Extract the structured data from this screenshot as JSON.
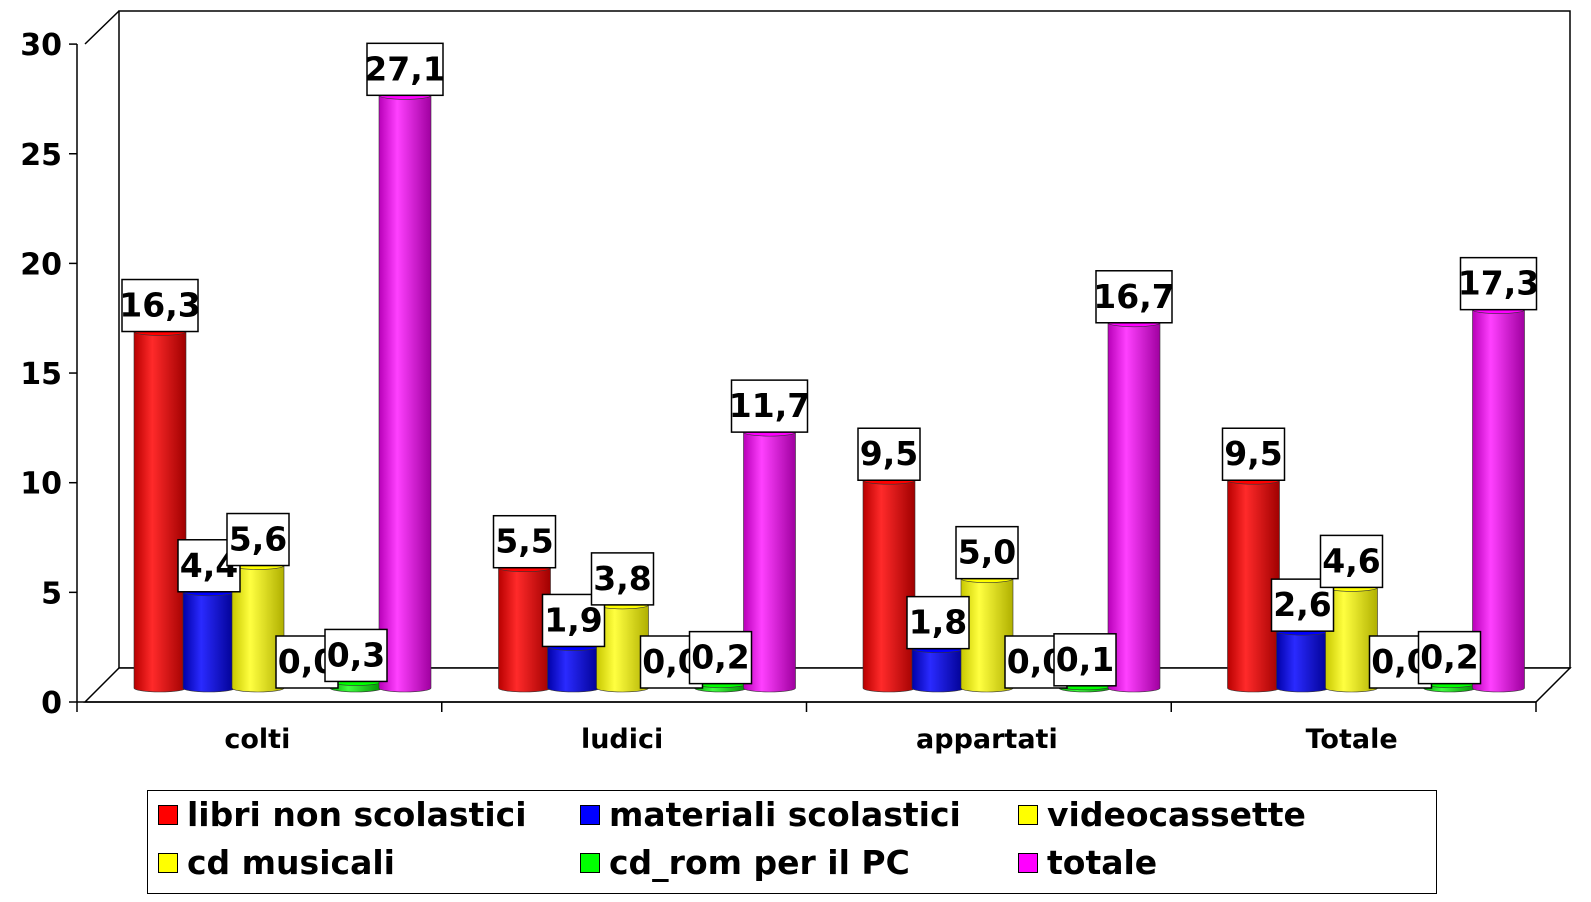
{
  "chart_data": {
    "type": "bar",
    "categories": [
      "colti",
      "ludici",
      "appartati",
      "Totale"
    ],
    "series": [
      {
        "name": "libri non scolastici",
        "color": "#ff0000",
        "values": [
          16.3,
          5.5,
          9.5,
          9.5
        ],
        "labels": [
          "16,3",
          "5,5",
          "9,5",
          "9,5"
        ]
      },
      {
        "name": "materiali scolastici",
        "color": "#0000ff",
        "values": [
          4.4,
          1.9,
          1.8,
          2.6
        ],
        "labels": [
          "4,4",
          "1,9",
          "1,8",
          "2,6"
        ]
      },
      {
        "name": "videocassette",
        "color": "#ffff00",
        "values": [
          5.6,
          3.8,
          5.0,
          4.6
        ],
        "labels": [
          "5,6",
          "3,8",
          "5,0",
          "4,6"
        ]
      },
      {
        "name": "cd musicali",
        "color": "#ffff00",
        "values": [
          0.0,
          0.0,
          0.0,
          0.0
        ],
        "labels": [
          "0,0",
          "0,0",
          "0,0",
          "0,0"
        ]
      },
      {
        "name": "cd_rom per il  PC",
        "color": "#00ff00",
        "values": [
          0.3,
          0.2,
          0.1,
          0.2
        ],
        "labels": [
          "0,3",
          "0,2",
          "0,1",
          "0,2"
        ]
      },
      {
        "name": "totale",
        "color": "#ff00ff",
        "values": [
          27.1,
          11.7,
          16.7,
          17.3
        ],
        "labels": [
          "27,1",
          "11,7",
          "16,7",
          "17,3"
        ]
      }
    ],
    "yticks": [
      "0",
      "5",
      "10",
      "15",
      "20",
      "25",
      "30"
    ],
    "ylim": [
      0,
      30
    ],
    "legend_position": "bottom",
    "grid": false
  }
}
